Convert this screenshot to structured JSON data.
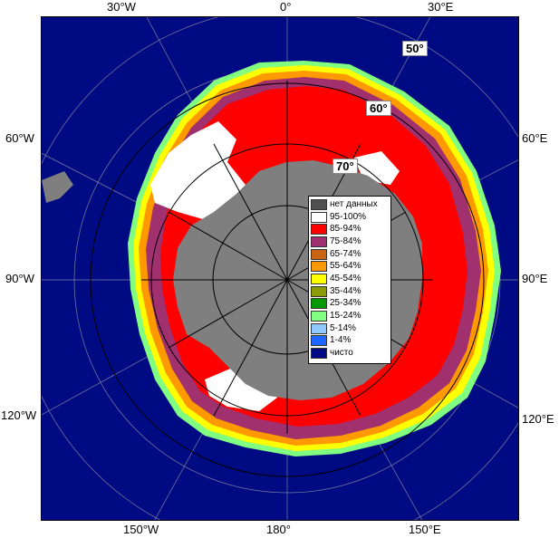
{
  "map": {
    "longitude_labels": {
      "top_left": "30°W",
      "top_center": "0°",
      "top_right": "30°E",
      "left_upper": "60°W",
      "left_middle": "90°W",
      "left_lower": "120°W",
      "right_upper": "60°E",
      "right_middle": "90°E",
      "right_lower": "120°E",
      "bottom_left": "150°W",
      "bottom_center": "180°",
      "bottom_right": "150°E"
    },
    "latitude_labels": [
      "50°",
      "60°",
      "70°"
    ]
  },
  "legend": {
    "items": [
      {
        "label": "нет данных",
        "color": "#505050"
      },
      {
        "label": "95-100%",
        "color": "#ffffff"
      },
      {
        "label": "85-94%",
        "color": "#ff0000"
      },
      {
        "label": "75-84%",
        "color": "#a0306e"
      },
      {
        "label": "65-74%",
        "color": "#c86414"
      },
      {
        "label": "55-64%",
        "color": "#ff9900"
      },
      {
        "label": "45-54%",
        "color": "#ffff00"
      },
      {
        "label": "35-44%",
        "color": "#8c9c00"
      },
      {
        "label": "25-34%",
        "color": "#009a00"
      },
      {
        "label": "15-24%",
        "color": "#80ff80"
      },
      {
        "label": "5-14%",
        "color": "#8ec8ff"
      },
      {
        "label": "1-4%",
        "color": "#1e64ff"
      },
      {
        "label": "чисто",
        "color": "#000a82"
      }
    ]
  },
  "colors": {
    "ocean": "#000a82",
    "land": "#7f7f7f",
    "grid": "#c8c8c8"
  }
}
